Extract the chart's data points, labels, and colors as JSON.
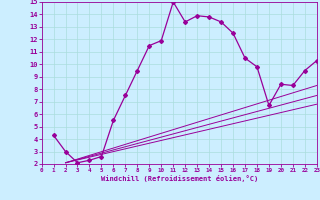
{
  "xlabel": "Windchill (Refroidissement éolien,°C)",
  "bg_color": "#cceeff",
  "line_color": "#990099",
  "grid_color": "#aadddd",
  "xlim": [
    0,
    23
  ],
  "ylim": [
    2,
    15
  ],
  "xticks": [
    0,
    1,
    2,
    3,
    4,
    5,
    6,
    7,
    8,
    9,
    10,
    11,
    12,
    13,
    14,
    15,
    16,
    17,
    18,
    19,
    20,
    21,
    22,
    23
  ],
  "yticks": [
    2,
    3,
    4,
    5,
    6,
    7,
    8,
    9,
    10,
    11,
    12,
    13,
    14,
    15
  ],
  "curve1_x": [
    1,
    2,
    3,
    4,
    5,
    6,
    7,
    8,
    9,
    10,
    11,
    12,
    13,
    14,
    15,
    16,
    17,
    18,
    19,
    20,
    21,
    22,
    23
  ],
  "curve1_y": [
    4.3,
    3.0,
    2.1,
    2.3,
    2.6,
    5.5,
    7.5,
    9.5,
    11.5,
    11.9,
    15.0,
    13.4,
    13.9,
    13.8,
    13.4,
    12.5,
    10.5,
    9.8,
    6.7,
    8.4,
    8.3,
    9.5,
    10.3
  ],
  "line1_x": [
    2,
    23
  ],
  "line1_y": [
    2.1,
    6.8
  ],
  "line2_x": [
    2,
    23
  ],
  "line2_y": [
    2.1,
    7.5
  ],
  "line3_x": [
    2,
    23
  ],
  "line3_y": [
    2.1,
    8.3
  ]
}
